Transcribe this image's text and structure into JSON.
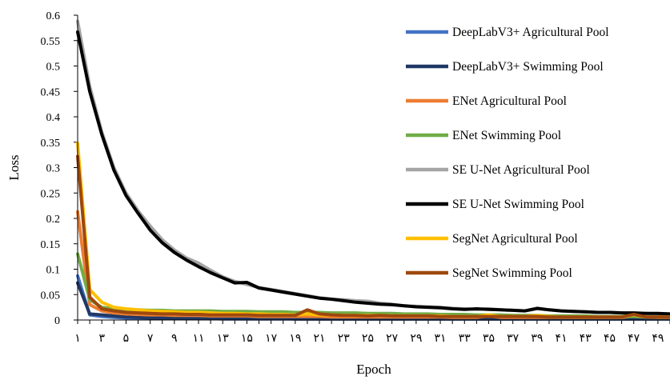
{
  "chart_data": {
    "type": "line",
    "title": "",
    "xlabel": "Epoch",
    "ylabel": "Loss",
    "ylim": [
      0,
      0.6
    ],
    "y_ticks": [
      "0",
      "0.05",
      "0.1",
      "0.15",
      "0.2",
      "0.25",
      "0.3",
      "0.35",
      "0.4",
      "0.45",
      "0.5",
      "0.55",
      "0.6"
    ],
    "x_tick_labels": [
      "۱",
      "۳",
      "۵",
      "۷",
      "۹",
      "۱۱",
      "۱۳",
      "۱۵",
      "۱۷",
      "۱۹",
      "۲۱",
      "۲۳",
      "۲۵",
      "۲۷",
      "۲۹",
      "۳۱",
      "۳۳",
      "۳۵",
      "۳۷",
      "۳۹",
      "۴۱",
      "۴۳",
      "۴۵",
      "۴۷",
      "۴۹"
    ],
    "grid": false,
    "legend_position": "right",
    "x": [
      1,
      2,
      3,
      4,
      5,
      6,
      7,
      8,
      9,
      10,
      11,
      12,
      13,
      14,
      15,
      16,
      17,
      18,
      19,
      20,
      21,
      22,
      23,
      24,
      25,
      26,
      27,
      28,
      29,
      30,
      31,
      32,
      33,
      34,
      35,
      36,
      37,
      38,
      39,
      40,
      41,
      42,
      43,
      44,
      45,
      46,
      47,
      48,
      49,
      50
    ],
    "series": [
      {
        "name": "SE U-Net Agricultural Pool",
        "color": "#A5A5A5",
        "values": [
          0.588,
          0.46,
          0.37,
          0.3,
          0.25,
          0.215,
          0.185,
          0.158,
          0.138,
          0.122,
          0.112,
          0.098,
          0.085,
          0.076,
          0.07,
          0.064,
          0.06,
          0.056,
          0.052,
          0.048,
          0.044,
          0.041,
          0.04,
          0.038,
          0.037,
          0.033,
          0.031,
          0.028,
          0.027,
          0.026,
          0.025,
          0.023,
          0.022,
          0.021,
          0.022,
          0.02,
          0.019,
          0.018,
          0.022,
          0.02,
          0.018,
          0.017,
          0.016,
          0.015,
          0.015,
          0.014,
          0.013,
          0.013,
          0.012,
          0.012
        ]
      },
      {
        "name": "SE U-Net Swimming Pool",
        "color": "#000000",
        "values": [
          0.567,
          0.45,
          0.365,
          0.295,
          0.245,
          0.21,
          0.177,
          0.152,
          0.133,
          0.118,
          0.105,
          0.093,
          0.083,
          0.073,
          0.074,
          0.063,
          0.059,
          0.055,
          0.051,
          0.047,
          0.043,
          0.041,
          0.038,
          0.035,
          0.033,
          0.031,
          0.03,
          0.028,
          0.026,
          0.025,
          0.024,
          0.022,
          0.021,
          0.022,
          0.021,
          0.02,
          0.019,
          0.018,
          0.023,
          0.02,
          0.018,
          0.017,
          0.016,
          0.015,
          0.015,
          0.014,
          0.014,
          0.013,
          0.013,
          0.012
        ]
      },
      {
        "name": "DeepLabV3+ Agricultural Pool",
        "color": "#4472C4",
        "values": [
          0.087,
          0.01,
          0.007,
          0.005,
          0.004,
          0.004,
          0.003,
          0.003,
          0.003,
          0.003,
          0.003,
          0.003,
          0.002,
          0.002,
          0.002,
          0.002,
          0.002,
          0.002,
          0.002,
          0.002,
          0.002,
          0.002,
          0.002,
          0.002,
          0.002,
          0.002,
          0.002,
          0.002,
          0.002,
          0.002,
          0.002,
          0.002,
          0.002,
          0.002,
          0.002,
          0.002,
          0.002,
          0.002,
          0.002,
          0.002,
          0.002,
          0.002,
          0.002,
          0.002,
          0.002,
          0.002,
          0.002,
          0.002,
          0.002,
          0.002
        ]
      },
      {
        "name": "DeepLabV3+ Swimming Pool",
        "color": "#203864",
        "values": [
          0.073,
          0.012,
          0.01,
          0.008,
          0.006,
          0.005,
          0.004,
          0.004,
          0.004,
          0.003,
          0.003,
          0.003,
          0.003,
          0.003,
          0.003,
          0.003,
          0.003,
          0.003,
          0.002,
          0.002,
          0.002,
          0.002,
          0.002,
          0.002,
          0.002,
          0.002,
          0.002,
          0.002,
          0.002,
          0.002,
          0.002,
          0.002,
          0.002,
          0.002,
          0.002,
          0.002,
          0.002,
          0.002,
          0.002,
          0.002,
          0.002,
          0.002,
          0.002,
          0.002,
          0.002,
          0.002,
          0.002,
          0.002,
          0.002,
          0.002
        ]
      },
      {
        "name": "ENet Agricultural Pool",
        "color": "#ED7D31",
        "values": [
          0.213,
          0.03,
          0.018,
          0.014,
          0.012,
          0.011,
          0.01,
          0.01,
          0.009,
          0.009,
          0.009,
          0.008,
          0.008,
          0.008,
          0.008,
          0.007,
          0.007,
          0.007,
          0.007,
          0.007,
          0.007,
          0.006,
          0.006,
          0.006,
          0.006,
          0.006,
          0.006,
          0.006,
          0.006,
          0.006,
          0.006,
          0.005,
          0.005,
          0.005,
          0.008,
          0.005,
          0.005,
          0.005,
          0.005,
          0.005,
          0.005,
          0.005,
          0.005,
          0.005,
          0.005,
          0.005,
          0.008,
          0.006,
          0.005,
          0.005
        ]
      },
      {
        "name": "ENet Swimming Pool",
        "color": "#70AD47",
        "values": [
          0.13,
          0.04,
          0.025,
          0.022,
          0.021,
          0.02,
          0.019,
          0.019,
          0.018,
          0.018,
          0.018,
          0.018,
          0.017,
          0.017,
          0.017,
          0.016,
          0.016,
          0.016,
          0.015,
          0.015,
          0.015,
          0.014,
          0.014,
          0.014,
          0.013,
          0.013,
          0.013,
          0.012,
          0.012,
          0.012,
          0.011,
          0.011,
          0.011,
          0.01,
          0.01,
          0.01,
          0.009,
          0.009,
          0.009,
          0.008,
          0.008,
          0.008,
          0.008,
          0.007,
          0.007,
          0.007,
          0.007,
          0.006,
          0.006,
          0.006
        ]
      },
      {
        "name": "SegNet Agricultural Pool",
        "color": "#FFC000",
        "values": [
          0.348,
          0.06,
          0.035,
          0.025,
          0.022,
          0.02,
          0.018,
          0.017,
          0.016,
          0.015,
          0.015,
          0.014,
          0.013,
          0.013,
          0.012,
          0.012,
          0.011,
          0.011,
          0.01,
          0.012,
          0.01,
          0.01,
          0.009,
          0.009,
          0.009,
          0.009,
          0.008,
          0.008,
          0.008,
          0.008,
          0.008,
          0.007,
          0.007,
          0.007,
          0.01,
          0.007,
          0.007,
          0.007,
          0.009,
          0.007,
          0.006,
          0.006,
          0.006,
          0.006,
          0.006,
          0.006,
          0.01,
          0.006,
          0.006,
          0.006
        ]
      },
      {
        "name": "SegNet Swimming Pool",
        "color": "#9E480E",
        "values": [
          0.322,
          0.045,
          0.022,
          0.018,
          0.015,
          0.014,
          0.013,
          0.012,
          0.012,
          0.011,
          0.011,
          0.01,
          0.01,
          0.01,
          0.01,
          0.009,
          0.009,
          0.009,
          0.009,
          0.02,
          0.012,
          0.01,
          0.009,
          0.009,
          0.008,
          0.009,
          0.008,
          0.008,
          0.008,
          0.008,
          0.007,
          0.007,
          0.007,
          0.007,
          0.007,
          0.007,
          0.007,
          0.007,
          0.007,
          0.006,
          0.006,
          0.006,
          0.006,
          0.006,
          0.006,
          0.006,
          0.011,
          0.006,
          0.006,
          0.006
        ]
      }
    ],
    "legend_order": [
      "DeepLabV3+ Agricultural Pool",
      "DeepLabV3+ Swimming Pool",
      "ENet Agricultural Pool",
      "ENet Swimming Pool",
      "SE U-Net Agricultural Pool",
      "SE U-Net Swimming Pool",
      "SegNet Agricultural Pool",
      "SegNet Swimming Pool"
    ]
  }
}
